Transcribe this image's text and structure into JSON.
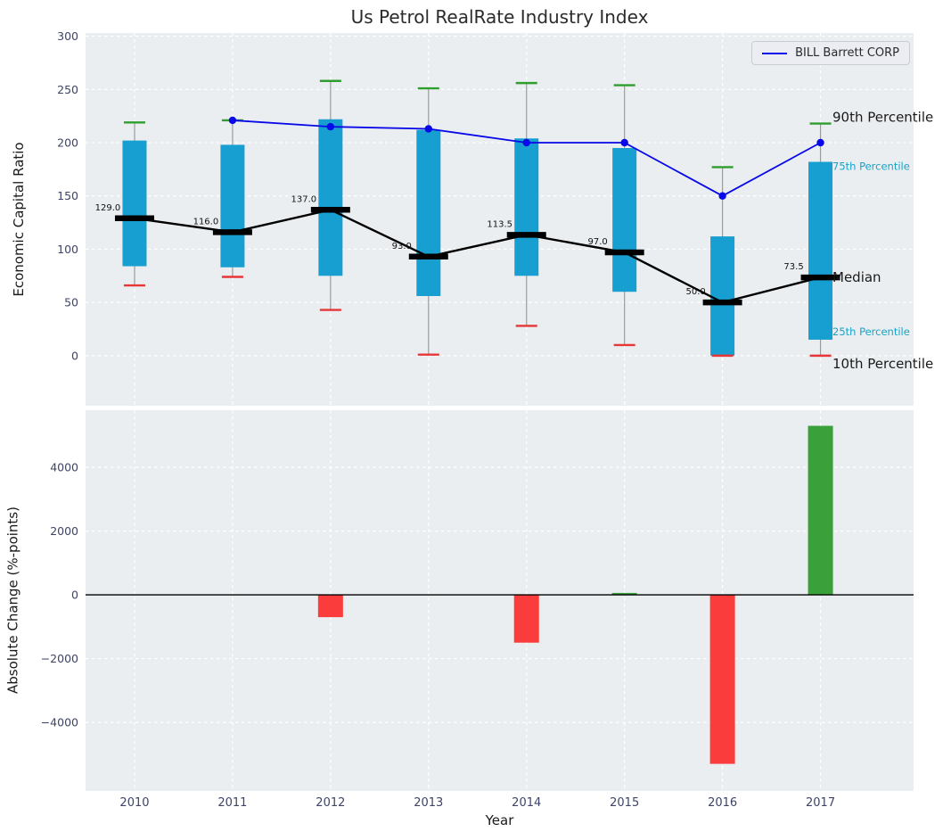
{
  "colors": {
    "figure_bg": "#ffffff",
    "plot_bg": "#ebeef0",
    "grid": "#ffffff",
    "box_fill": "#189fd1",
    "median": "#000000",
    "whisker": "#9a9a9a",
    "cap_90th": "#2e9e2e",
    "cap_10th": "#e83535",
    "company_line": "#0808e8",
    "bar_positive": "#3aa03a",
    "bar_negative": "#fa3c3c",
    "tick_label": "#3d4466",
    "percentile_small_label": "#17a3c9",
    "text": "#1a1a1a"
  },
  "chart_data": [
    {
      "type": "box",
      "title": "Us Petrol RealRate Industry Index",
      "ylabel": "Economic Capital Ratio",
      "ylim": [
        -47,
        303
      ],
      "yticks": [
        0,
        50,
        100,
        150,
        200,
        250,
        300
      ],
      "categories": [
        2010,
        2011,
        2012,
        2013,
        2014,
        2015,
        2016,
        2017
      ],
      "boxes": [
        {
          "year": 2010,
          "p10": 66,
          "p25": 84,
          "median": 129.0,
          "p75": 202,
          "p90": 219
        },
        {
          "year": 2011,
          "p10": 74,
          "p25": 83,
          "median": 116.0,
          "p75": 198,
          "p90": 221
        },
        {
          "year": 2012,
          "p10": 43,
          "p25": 75,
          "median": 137.0,
          "p75": 222,
          "p90": 258
        },
        {
          "year": 2013,
          "p10": 1,
          "p25": 56,
          "median": 93.0,
          "p75": 212,
          "p90": 251
        },
        {
          "year": 2014,
          "p10": 28,
          "p25": 75,
          "median": 113.5,
          "p75": 204,
          "p90": 256
        },
        {
          "year": 2015,
          "p10": 10,
          "p25": 60,
          "median": 97.0,
          "p75": 195,
          "p90": 254
        },
        {
          "year": 2016,
          "p10": 0,
          "p25": 0,
          "median": 50.0,
          "p75": 112,
          "p90": 177
        },
        {
          "year": 2017,
          "p10": 0,
          "p25": 15,
          "median": 73.5,
          "p75": 182,
          "p90": 218
        }
      ],
      "median_labels": [
        "129.0",
        "116.0",
        "137.0",
        "93.0",
        "113.5",
        "97.0",
        "50.0",
        "73.5"
      ],
      "series": [
        {
          "name": "BILL Barrett CORP",
          "x": [
            2011,
            2012,
            2013,
            2014,
            2015,
            2016,
            2017
          ],
          "y": [
            221,
            215,
            213,
            200,
            200,
            150,
            200
          ]
        }
      ],
      "annotations": [
        {
          "text": "90th Percentile",
          "attach": "p90",
          "style": "large",
          "color": "#1a1a1a"
        },
        {
          "text": "75th Percentile",
          "attach": "p75",
          "style": "small",
          "color": "#17a3c9"
        },
        {
          "text": "Median",
          "attach": "median",
          "style": "large",
          "color": "#1a1a1a"
        },
        {
          "text": "25th Percentile",
          "attach": "p25",
          "style": "small",
          "color": "#17a3c9"
        },
        {
          "text": "10th Percentile",
          "attach": "p10",
          "style": "large",
          "color": "#1a1a1a"
        }
      ],
      "legend_position": "upper right",
      "grid": true
    },
    {
      "type": "bar",
      "ylabel": "Absolute Change (%-points)",
      "xlabel": "Year",
      "categories": [
        2010,
        2011,
        2012,
        2013,
        2014,
        2015,
        2016,
        2017
      ],
      "values": [
        0,
        0,
        -700,
        0,
        -1500,
        60,
        -5300,
        5300
      ],
      "yticks": [
        -4000,
        -2000,
        0,
        2000,
        4000
      ],
      "ylim": [
        -6150,
        5790
      ],
      "grid": true
    }
  ]
}
